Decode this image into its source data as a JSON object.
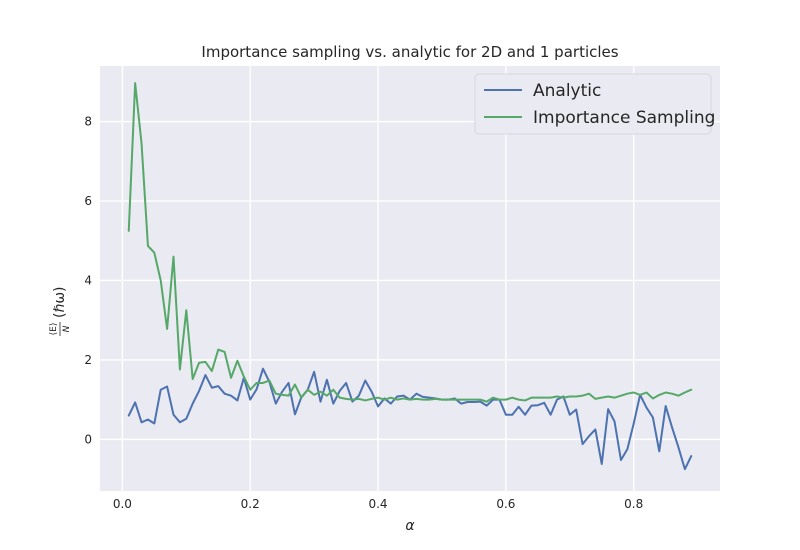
{
  "chart_data": {
    "type": "line",
    "title": "Importance sampling vs. analytic for 2D and 1 particles",
    "xlabel": "α",
    "ylabel_frac_num": "⟨E⟩",
    "ylabel_frac_den": "N",
    "ylabel_unit": "(ℏω)",
    "xlim": [
      -0.035,
      0.935
    ],
    "ylim": [
      -1.3,
      9.4
    ],
    "xticks": [
      0.0,
      0.2,
      0.4,
      0.6,
      0.8
    ],
    "xtick_labels": [
      "0.0",
      "0.2",
      "0.4",
      "0.6",
      "0.8"
    ],
    "yticks": [
      0,
      2,
      4,
      6,
      8
    ],
    "ytick_labels": [
      "0",
      "2",
      "4",
      "6",
      "8"
    ],
    "grid": true,
    "legend": "top-right",
    "x": [
      0.01,
      0.02,
      0.03,
      0.04,
      0.05,
      0.06,
      0.07,
      0.08,
      0.09,
      0.1,
      0.11,
      0.12,
      0.13,
      0.14,
      0.15,
      0.16,
      0.17,
      0.18,
      0.19,
      0.2,
      0.21,
      0.22,
      0.23,
      0.24,
      0.25,
      0.26,
      0.27,
      0.28,
      0.29,
      0.3,
      0.31,
      0.32,
      0.33,
      0.34,
      0.35,
      0.36,
      0.37,
      0.38,
      0.39,
      0.4,
      0.41,
      0.42,
      0.43,
      0.44,
      0.45,
      0.46,
      0.47,
      0.48,
      0.49,
      0.5,
      0.51,
      0.52,
      0.53,
      0.54,
      0.55,
      0.56,
      0.57,
      0.58,
      0.59,
      0.6,
      0.61,
      0.62,
      0.63,
      0.64,
      0.65,
      0.66,
      0.67,
      0.68,
      0.69,
      0.7,
      0.71,
      0.72,
      0.73,
      0.74,
      0.75,
      0.76,
      0.77,
      0.78,
      0.79,
      0.8,
      0.81,
      0.82,
      0.83,
      0.84,
      0.85,
      0.86,
      0.87,
      0.88,
      0.89
    ],
    "series": [
      {
        "name": "Analytic",
        "color": "#4c72b0",
        "values": [
          0.6,
          0.93,
          0.43,
          0.5,
          0.4,
          1.25,
          1.33,
          0.62,
          0.43,
          0.52,
          0.9,
          1.22,
          1.62,
          1.3,
          1.34,
          1.15,
          1.1,
          0.98,
          1.55,
          1.0,
          1.26,
          1.78,
          1.45,
          0.9,
          1.2,
          1.42,
          0.63,
          1.06,
          1.25,
          1.7,
          0.95,
          1.5,
          0.9,
          1.22,
          1.42,
          0.95,
          1.1,
          1.48,
          1.2,
          0.83,
          1.03,
          0.9,
          1.08,
          1.1,
          1.0,
          1.15,
          1.07,
          1.05,
          1.03,
          1.0,
          1.0,
          1.03,
          0.9,
          0.94,
          0.94,
          0.95,
          0.85,
          1.0,
          1.0,
          0.62,
          0.62,
          0.82,
          0.62,
          0.85,
          0.86,
          0.92,
          0.62,
          1.0,
          1.08,
          0.62,
          0.75,
          -0.12,
          0.08,
          0.25,
          -0.62,
          0.76,
          0.45,
          -0.52,
          -0.25,
          0.4,
          1.12,
          0.8,
          0.55,
          -0.3,
          0.84,
          0.3,
          -0.2,
          -0.75,
          -0.42
        ]
      },
      {
        "name": "Importance Sampling",
        "color": "#55a868",
        "values": [
          5.25,
          8.97,
          7.45,
          4.87,
          4.7,
          4.0,
          2.78,
          4.6,
          1.76,
          3.25,
          1.52,
          1.93,
          1.95,
          1.72,
          2.26,
          2.2,
          1.55,
          1.98,
          1.58,
          1.25,
          1.42,
          1.42,
          1.48,
          1.15,
          1.12,
          1.1,
          1.38,
          1.05,
          1.25,
          1.12,
          1.2,
          1.1,
          1.25,
          1.05,
          1.02,
          1.0,
          1.02,
          0.98,
          1.02,
          1.05,
          1.0,
          1.05,
          1.0,
          1.03,
          1.0,
          1.02,
          1.0,
          1.0,
          1.02,
          1.0,
          1.0,
          1.0,
          1.0,
          1.0,
          1.0,
          1.0,
          0.95,
          1.05,
          1.0,
          1.0,
          1.05,
          1.0,
          0.98,
          1.05,
          1.05,
          1.05,
          1.05,
          1.08,
          1.05,
          1.08,
          1.08,
          1.1,
          1.15,
          1.02,
          1.05,
          1.08,
          1.05,
          1.1,
          1.15,
          1.18,
          1.12,
          1.18,
          1.03,
          1.12,
          1.18,
          1.15,
          1.1,
          1.18,
          1.25
        ]
      }
    ]
  }
}
